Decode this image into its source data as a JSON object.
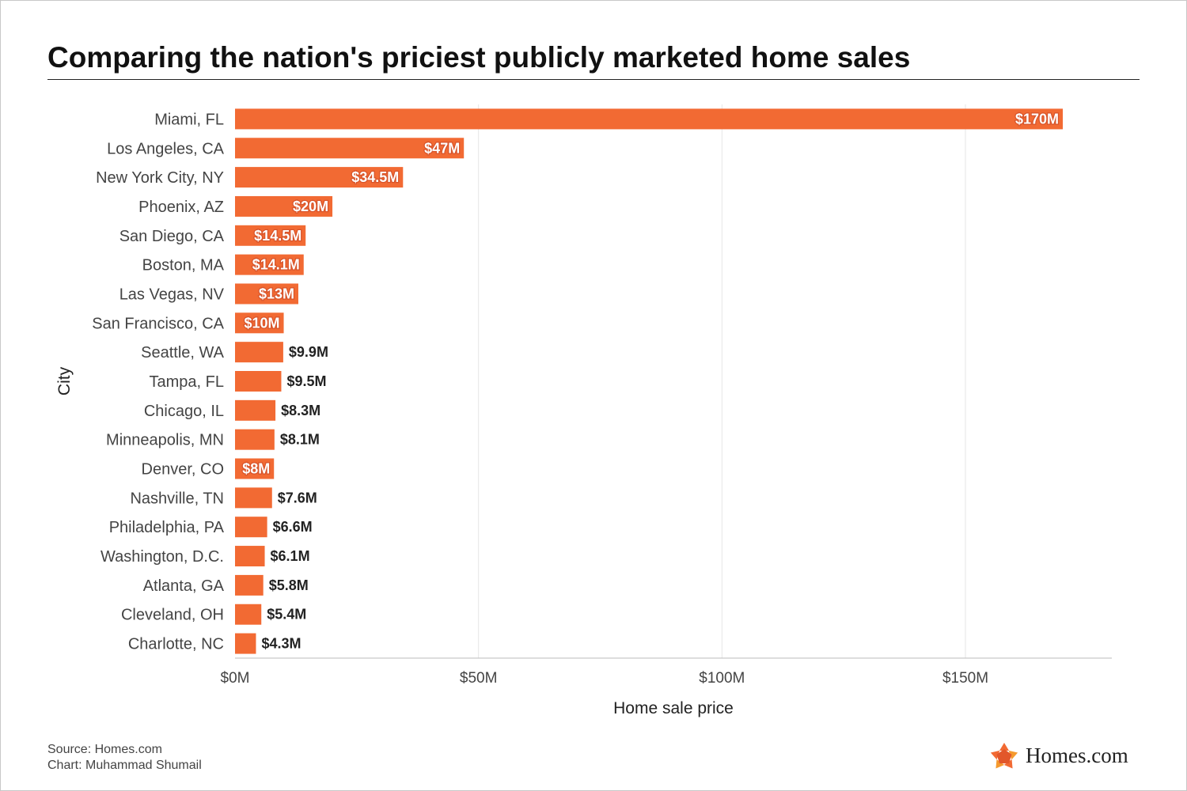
{
  "title": "Comparing the nation's priciest publicly marketed home sales",
  "footer": {
    "source": "Source: Homes.com",
    "credit": "Chart: Muhammad Shumail"
  },
  "logo": {
    "text": "Homes.com",
    "icon": "homes-com-star-logo-icon"
  },
  "colors": {
    "bar": "#f26a33",
    "grid": "#e6e6e6",
    "text": "#222222"
  },
  "chart_data": {
    "type": "bar",
    "orientation": "horizontal",
    "xlabel": "Home sale price",
    "ylabel": "City",
    "xlim": [
      0,
      180
    ],
    "x_unit": "$M",
    "x_ticks": [
      0,
      50,
      100,
      150
    ],
    "x_tick_labels": [
      "$0M",
      "$50M",
      "$100M",
      "$150M"
    ],
    "grid": "vertical",
    "categories": [
      "Miami, FL",
      "Los Angeles, CA",
      "New York City, NY",
      "Phoenix, AZ",
      "San Diego, CA",
      "Boston, MA",
      "Las Vegas, NV",
      "San Francisco, CA",
      "Seattle, WA",
      "Tampa, FL",
      "Chicago, IL",
      "Minneapolis, MN",
      "Denver, CO",
      "Nashville, TN",
      "Philadelphia, PA",
      "Washington, D.C.",
      "Atlanta, GA",
      "Cleveland, OH",
      "Charlotte, NC"
    ],
    "values": [
      170,
      47,
      34.5,
      20,
      14.5,
      14.1,
      13,
      10,
      9.9,
      9.5,
      8.3,
      8.1,
      8,
      7.6,
      6.6,
      6.1,
      5.8,
      5.4,
      4.3
    ],
    "labels": [
      "$170M",
      "$47M",
      "$34.5M",
      "$20M",
      "$14.5M",
      "$14.1M",
      "$13M",
      "$10M",
      "$9.9M",
      "$9.5M",
      "$8.3M",
      "$8.1M",
      "$8M",
      "$7.6M",
      "$6.6M",
      "$6.1M",
      "$5.8M",
      "$5.4M",
      "$4.3M"
    ],
    "label_inside": [
      true,
      true,
      true,
      true,
      true,
      true,
      true,
      true,
      false,
      false,
      false,
      false,
      true,
      false,
      false,
      false,
      false,
      false,
      false
    ]
  }
}
